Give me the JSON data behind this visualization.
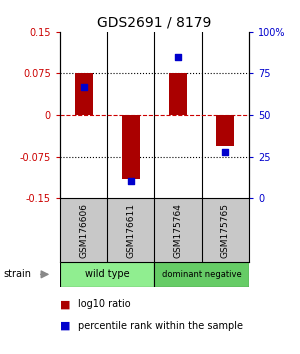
{
  "title": "GDS2691 / 8179",
  "samples": [
    "GSM176606",
    "GSM176611",
    "GSM175764",
    "GSM175765"
  ],
  "log10_ratio": [
    0.075,
    -0.115,
    0.075,
    -0.055
  ],
  "percentile_rank": [
    0.67,
    0.105,
    0.85,
    0.28
  ],
  "groups": [
    {
      "label": "wild type",
      "samples": [
        0,
        1
      ],
      "color": "#90EE90"
    },
    {
      "label": "dominant negative",
      "samples": [
        2,
        3
      ],
      "color": "#66CC66"
    }
  ],
  "ylim": [
    -0.15,
    0.15
  ],
  "yticks_left": [
    -0.15,
    -0.075,
    0,
    0.075,
    0.15
  ],
  "yticks_right": [
    0,
    25,
    50,
    75,
    100
  ],
  "bar_color": "#AA0000",
  "dot_color": "#0000CC",
  "background_color": "#ffffff",
  "plot_bg": "#ffffff",
  "strain_label": "strain",
  "legend_ratio_label": "log10 ratio",
  "legend_pct_label": "percentile rank within the sample"
}
